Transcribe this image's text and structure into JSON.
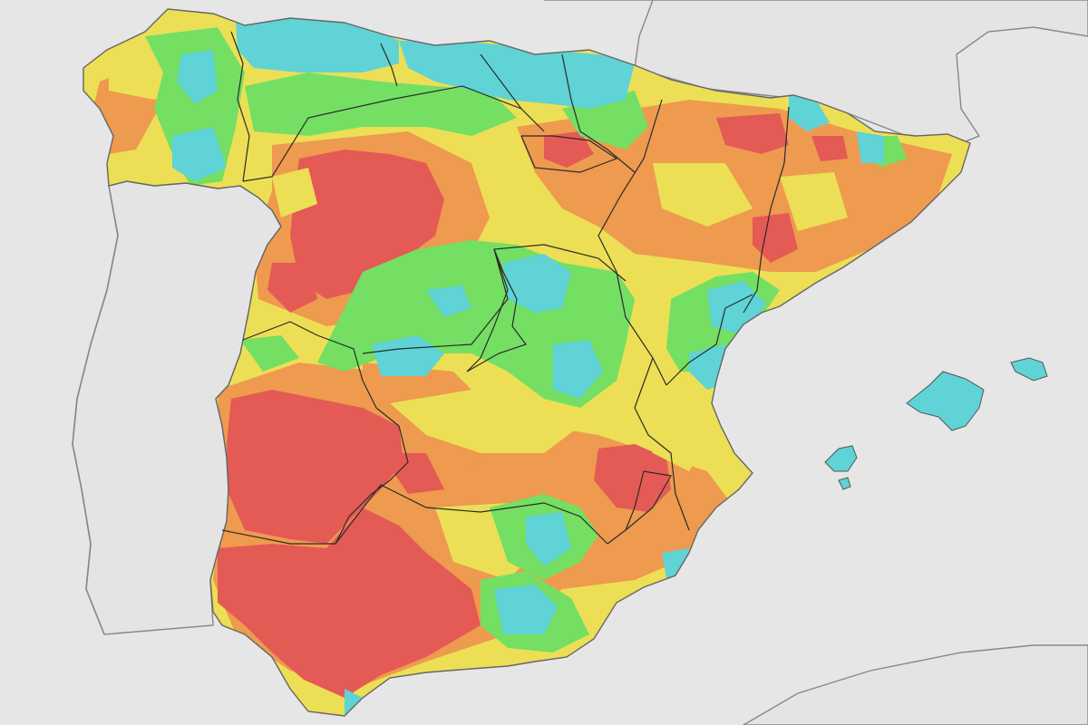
{
  "map": {
    "background_color": "#e6e6e6",
    "land_color": "#e4e4e4",
    "outline_color": "#888888",
    "border_color": "#2b2b2b",
    "palette": {
      "red": "#e45a55",
      "orange": "#ee9a4f",
      "yellow": "#ecdf55",
      "green": "#74df63",
      "cyan": "#5fd3d6"
    },
    "labels": []
  }
}
